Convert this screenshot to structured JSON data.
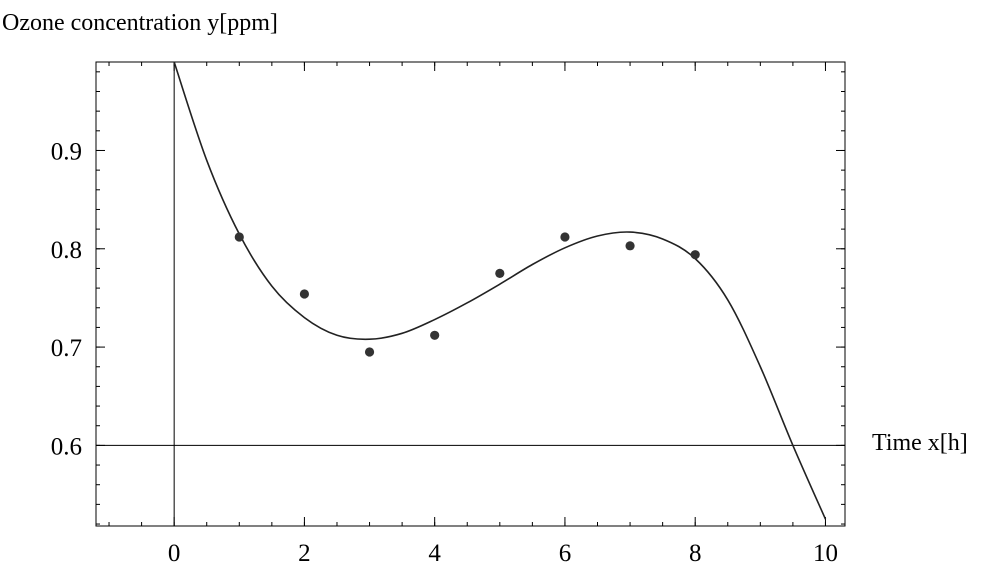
{
  "chart_data": {
    "type": "scatter",
    "ylabel": "Ozone concentration y[ppm]",
    "xlabel": "Time x[h]",
    "xlim": [
      -1.2,
      10.3
    ],
    "ylim": [
      0.518,
      0.99
    ],
    "axis_cross": {
      "x": 0,
      "y": 0.6
    },
    "xticks": [
      0,
      2,
      4,
      6,
      8,
      10
    ],
    "xtick_labels": [
      "0",
      "2",
      "4",
      "6",
      "8",
      "10"
    ],
    "yticks": [
      0.6,
      0.7,
      0.8,
      0.9
    ],
    "ytick_labels": [
      "0.6",
      "0.7",
      "0.8",
      "0.9"
    ],
    "grid": false,
    "series": [
      {
        "kind": "points",
        "x": [
          1,
          2,
          3,
          4,
          5,
          6,
          7,
          8
        ],
        "y": [
          0.812,
          0.754,
          0.695,
          0.712,
          0.775,
          0.812,
          0.803,
          0.794
        ]
      },
      {
        "kind": "fitted-curve",
        "x": [
          0,
          0.5,
          1,
          1.5,
          2,
          2.5,
          3,
          3.5,
          4,
          4.5,
          5,
          5.5,
          6,
          6.5,
          7,
          7.5,
          8,
          8.5,
          9,
          9.5,
          10
        ],
        "y": [
          0.99,
          0.89,
          0.815,
          0.762,
          0.73,
          0.712,
          0.708,
          0.714,
          0.728,
          0.745,
          0.764,
          0.784,
          0.801,
          0.813,
          0.817,
          0.81,
          0.79,
          0.748,
          0.68,
          0.6,
          0.525
        ]
      }
    ],
    "colors": {
      "curve": "#222222",
      "points": "#333333",
      "axes": "#000000"
    }
  }
}
